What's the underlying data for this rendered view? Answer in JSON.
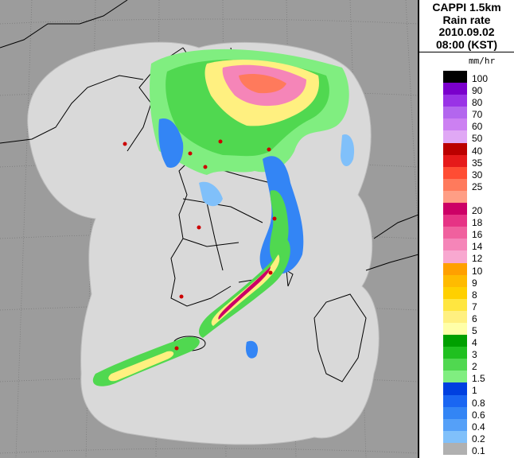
{
  "title": {
    "line1": "CAPPI 1.5km",
    "line2": "Rain rate",
    "line3": "2010.09.02",
    "line4": "08:00 (KST)"
  },
  "legend": {
    "unit": "mm/hr",
    "levels": [
      {
        "label": "100",
        "color": "#000000"
      },
      {
        "label": "90",
        "color": "#7a00cc"
      },
      {
        "label": "80",
        "color": "#9933e6"
      },
      {
        "label": "70",
        "color": "#b366ee"
      },
      {
        "label": "60",
        "color": "#cc80f2"
      },
      {
        "label": "50",
        "color": "#e0a8f5"
      },
      {
        "label": "40",
        "color": "#bb0000"
      },
      {
        "label": "35",
        "color": "#e61a1a"
      },
      {
        "label": "30",
        "color": "#ff4d33"
      },
      {
        "label": "25",
        "color": "#ff7a5c"
      },
      {
        "label": "",
        "color": "#ff9e85"
      },
      {
        "label": "20",
        "color": "#cc0066"
      },
      {
        "label": "18",
        "color": "#e63385"
      },
      {
        "label": "16",
        "color": "#f0609e"
      },
      {
        "label": "14",
        "color": "#f585b8"
      },
      {
        "label": "12",
        "color": "#f8a8d0"
      },
      {
        "label": "10",
        "color": "#ffa000"
      },
      {
        "label": "9",
        "color": "#ffbb00"
      },
      {
        "label": "8",
        "color": "#ffd000"
      },
      {
        "label": "7",
        "color": "#ffe640"
      },
      {
        "label": "6",
        "color": "#fff080"
      },
      {
        "label": "5",
        "color": "#ffffa8"
      },
      {
        "label": "4",
        "color": "#00a000"
      },
      {
        "label": "3",
        "color": "#20c020"
      },
      {
        "label": "2",
        "color": "#50d850"
      },
      {
        "label": "1.5",
        "color": "#80ee80"
      },
      {
        "label": "1",
        "color": "#0040e0"
      },
      {
        "label": "0.8",
        "color": "#1a66f2"
      },
      {
        "label": "0.6",
        "color": "#3385f5"
      },
      {
        "label": "0.4",
        "color": "#55a0f8"
      },
      {
        "label": "0.2",
        "color": "#80c0fa"
      },
      {
        "label": "0.1",
        "color": "#b0b0b0"
      }
    ]
  },
  "map": {
    "background_color": "#9c9c9c",
    "coverage_color": "#d9d9d9",
    "coastline_color": "#000000",
    "grid_color": "#7a7a7a",
    "site_marker_color": "#cc0000"
  }
}
